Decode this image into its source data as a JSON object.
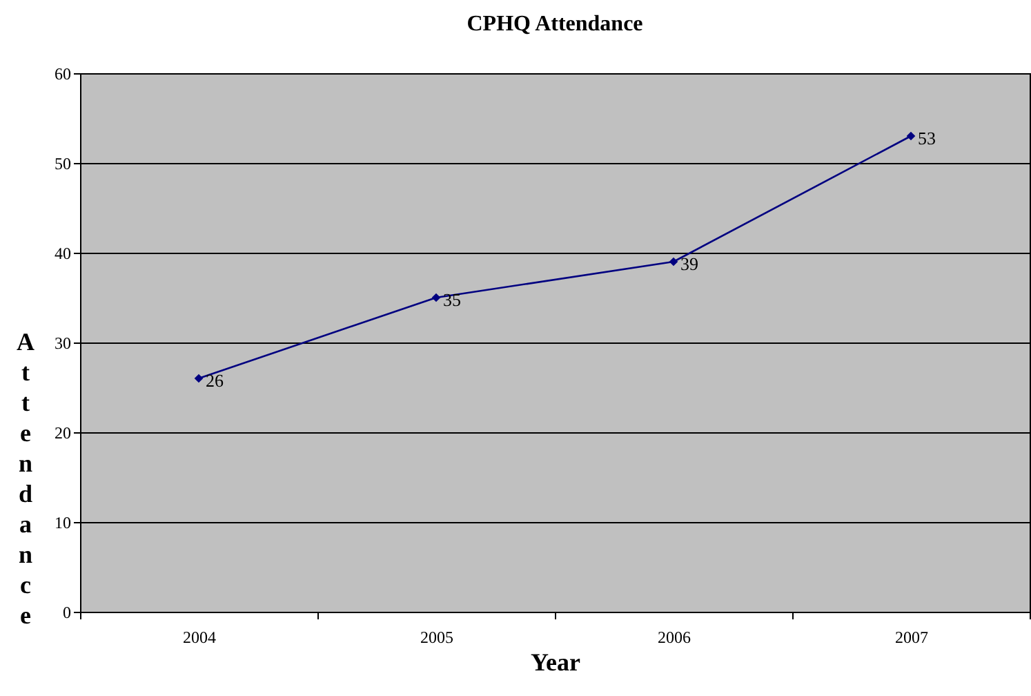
{
  "chart_data": {
    "type": "line",
    "title": "CPHQ Attendance",
    "xlabel": "Year",
    "ylabel": "Attendance",
    "categories": [
      "2004",
      "2005",
      "2006",
      "2007"
    ],
    "series": [
      {
        "color": "#000080",
        "values": [
          26,
          35,
          39,
          53
        ]
      }
    ],
    "ylim": [
      0,
      60
    ],
    "yticks": [
      0,
      10,
      20,
      30,
      40,
      50,
      60
    ],
    "grid": "y",
    "marker": "diamond",
    "line_style": "solid",
    "data_labels": true,
    "legend": false
  }
}
